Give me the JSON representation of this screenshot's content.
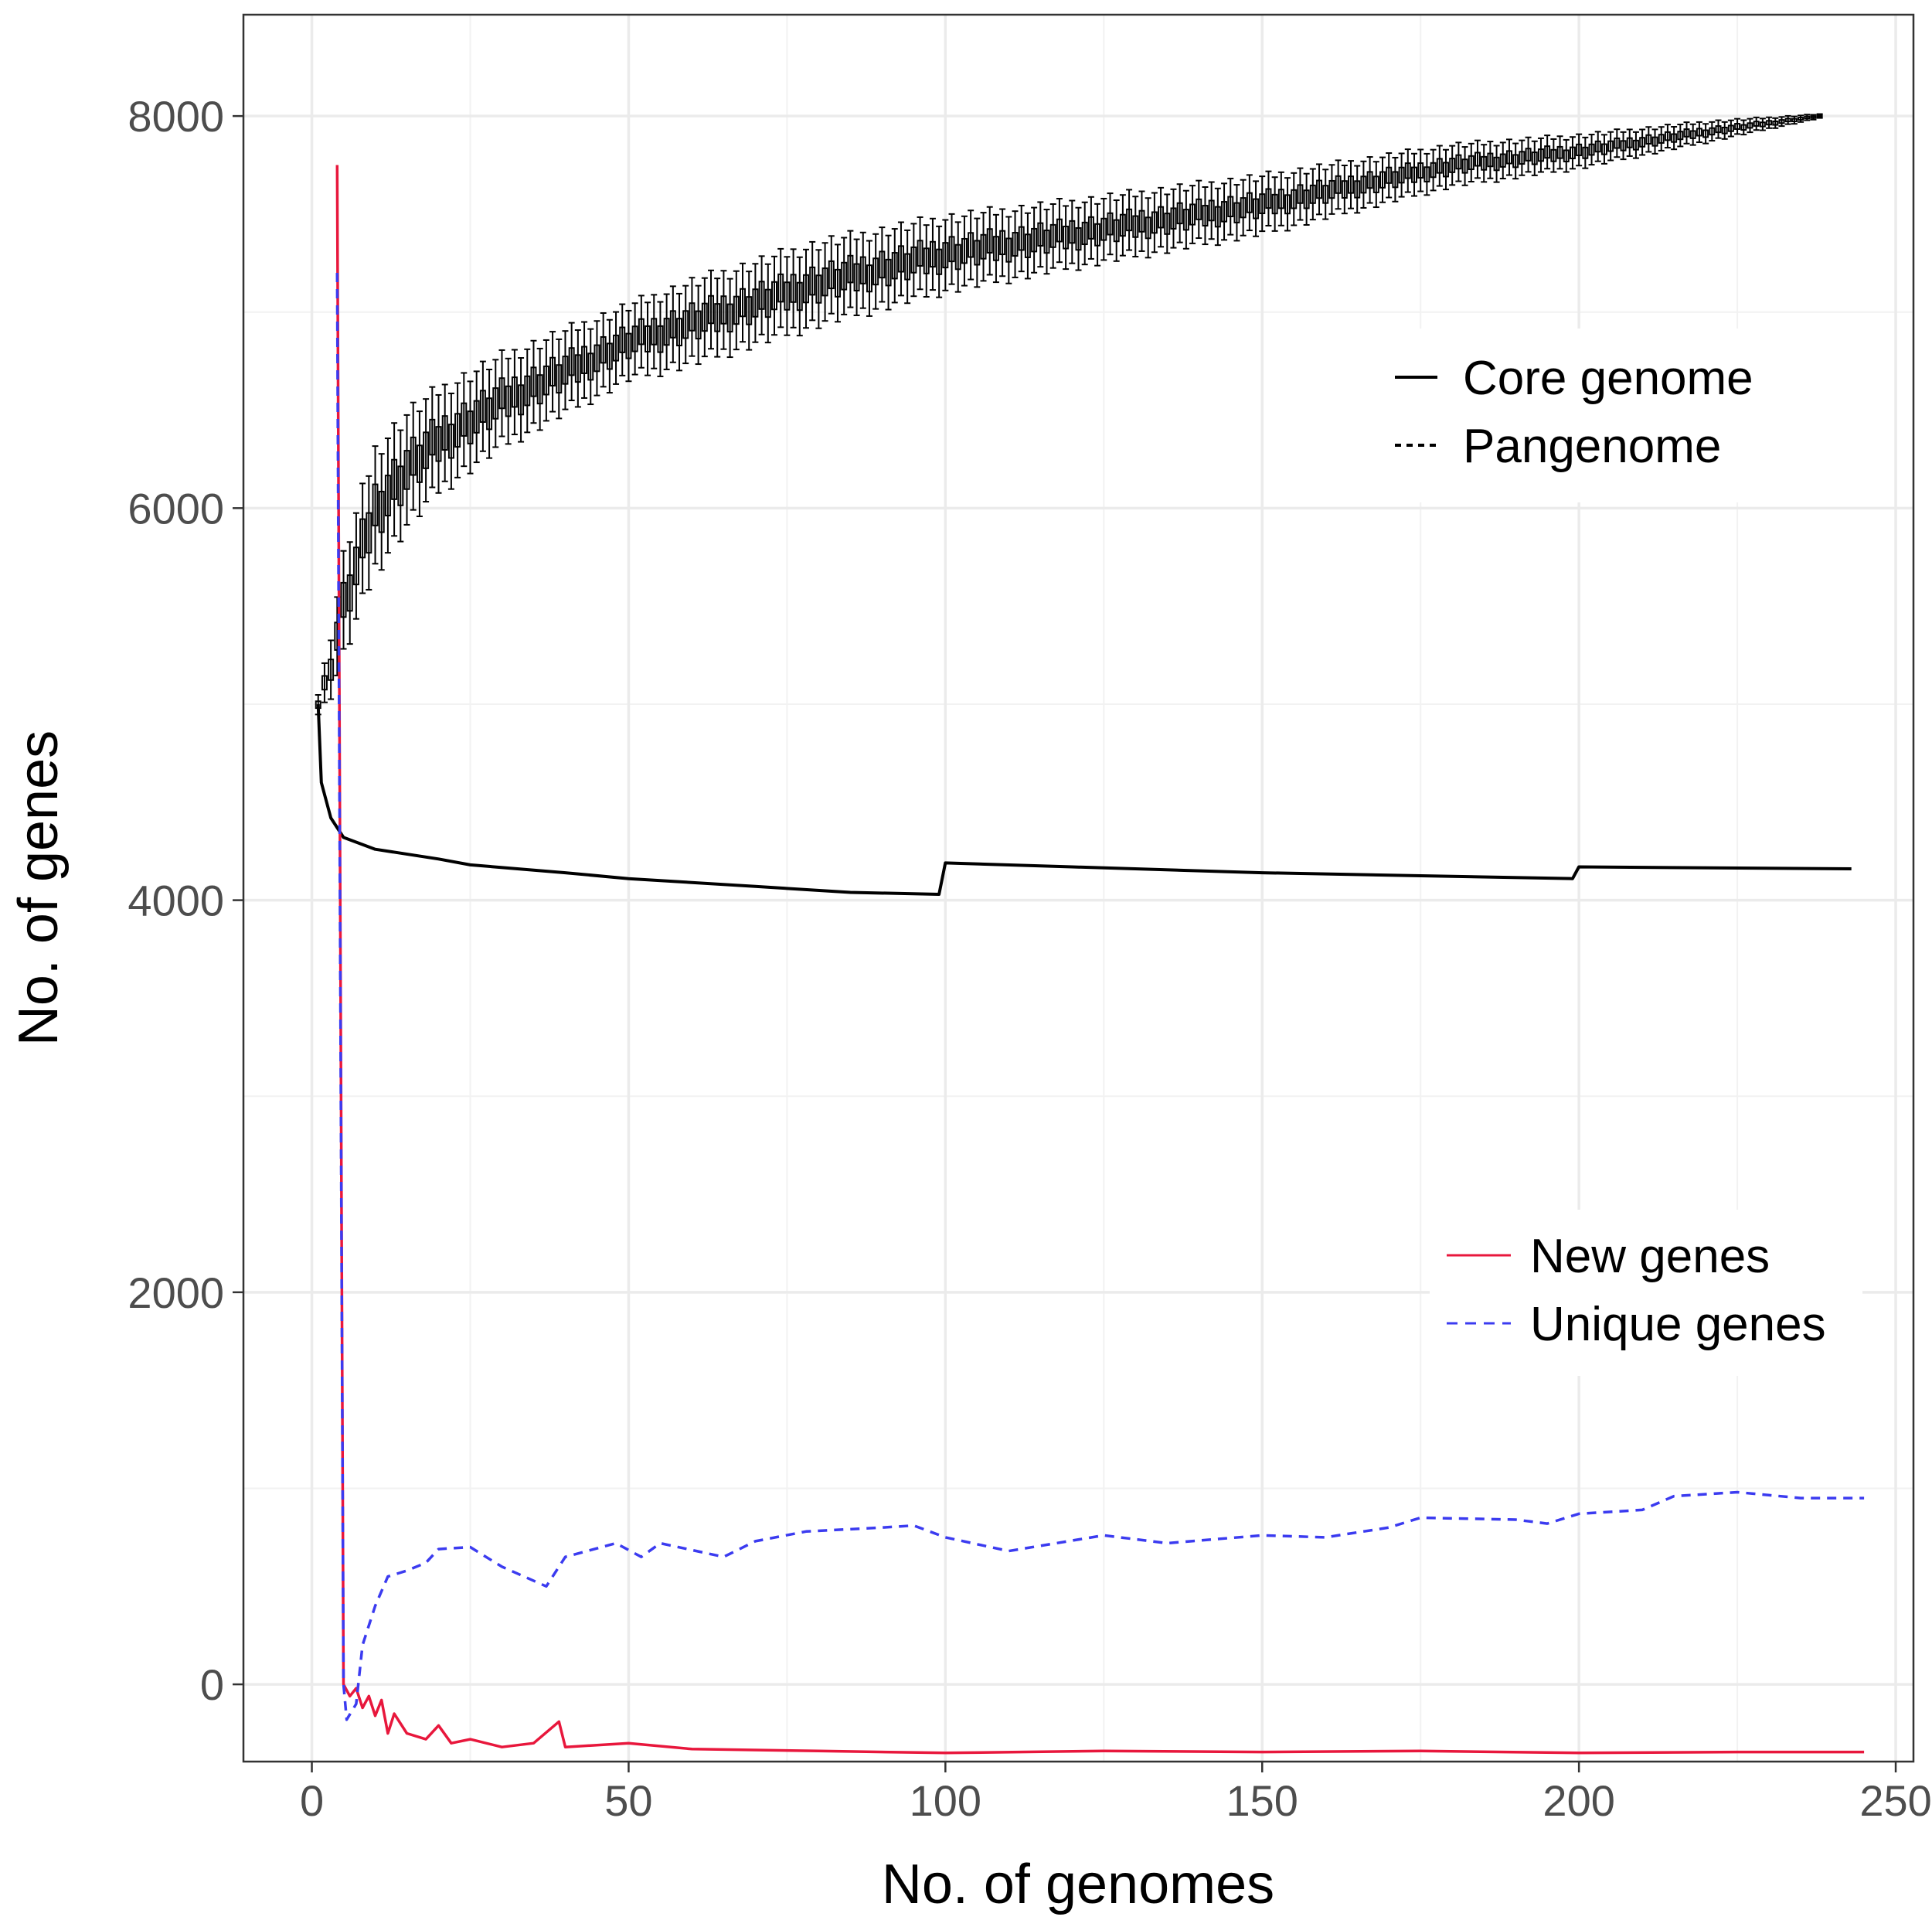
{
  "chart_data": {
    "type": "line",
    "xlabel": "No. of genomes",
    "ylabel": "No. of genes",
    "xlim": [
      -10.8,
      252.8
    ],
    "ylim": [
      -394,
      8517
    ],
    "xticks": [
      0,
      50,
      100,
      150,
      200,
      250
    ],
    "yticks": [
      0,
      2000,
      4000,
      6000,
      8000
    ],
    "xtick_labels": [
      "0",
      "50",
      "100",
      "150",
      "200",
      "250"
    ],
    "ytick_labels": [
      "0",
      "2000",
      "4000",
      "6000",
      "8000"
    ],
    "grid": true,
    "legends": [
      {
        "placement": "upper-right",
        "entries": [
          "Core genome",
          "Pangenome"
        ]
      },
      {
        "placement": "lower-right",
        "entries": [
          "New genes",
          "Unique genes"
        ]
      }
    ],
    "series": [
      {
        "name": "Core genome",
        "color": "#000000",
        "style": "solid",
        "x": [
          1,
          1.5,
          3,
          5,
          10,
          20,
          25,
          40,
          50,
          70,
          85,
          99,
          100,
          120,
          150,
          199,
          200,
          243
        ],
        "y": [
          5000,
          4600,
          4420,
          4320,
          4260,
          4210,
          4180,
          4140,
          4110,
          4070,
          4040,
          4030,
          4190,
          4170,
          4140,
          4110,
          4170,
          4160
        ]
      },
      {
        "name": "Pangenome",
        "color": "#000000",
        "style": "boxplot",
        "x": [
          1,
          3,
          5,
          10,
          15,
          20,
          30,
          40,
          50,
          60,
          80,
          100,
          120,
          150,
          180,
          200,
          220,
          238
        ],
        "y": [
          5000,
          5200,
          5500,
          6000,
          6200,
          6350,
          6550,
          6700,
          6850,
          6950,
          7150,
          7300,
          7400,
          7550,
          7750,
          7820,
          7920,
          8000
        ],
        "spread": [
          50,
          150,
          250,
          300,
          280,
          250,
          220,
          200,
          180,
          200,
          200,
          180,
          160,
          140,
          100,
          80,
          50,
          10
        ]
      },
      {
        "name": "New genes",
        "color": "#e8173c",
        "style": "solid",
        "x": [
          4,
          5,
          6,
          7,
          8,
          9,
          10,
          11,
          12,
          13,
          15,
          18,
          20,
          22,
          25,
          30,
          35,
          39,
          40,
          50,
          60,
          80,
          100,
          125,
          150,
          175,
          200,
          225,
          245
        ],
        "y": [
          7750,
          0,
          -60,
          -20,
          -120,
          -60,
          -160,
          -80,
          -250,
          -150,
          -250,
          -280,
          -210,
          -300,
          -280,
          -320,
          -300,
          -190,
          -320,
          -300,
          -330,
          -340,
          -350,
          -340,
          -345,
          -340,
          -350,
          -345,
          -345
        ]
      },
      {
        "name": "Unique genes",
        "color": "#3b3bf0",
        "style": "dashed",
        "x": [
          4,
          5,
          5.5,
          7,
          8,
          10,
          12,
          15,
          18,
          20,
          25,
          28,
          30,
          37,
          40,
          48,
          52,
          55,
          65,
          70,
          78,
          90,
          95,
          100,
          110,
          125,
          135,
          150,
          160,
          170,
          175,
          190,
          195,
          200,
          210,
          215,
          225,
          235,
          245
        ],
        "y": [
          7200,
          0,
          -180,
          -100,
          200,
          400,
          550,
          580,
          620,
          690,
          700,
          640,
          600,
          500,
          650,
          720,
          650,
          720,
          650,
          730,
          780,
          800,
          810,
          750,
          680,
          760,
          720,
          760,
          750,
          800,
          850,
          840,
          820,
          870,
          890,
          960,
          980,
          950,
          950
        ]
      }
    ]
  }
}
